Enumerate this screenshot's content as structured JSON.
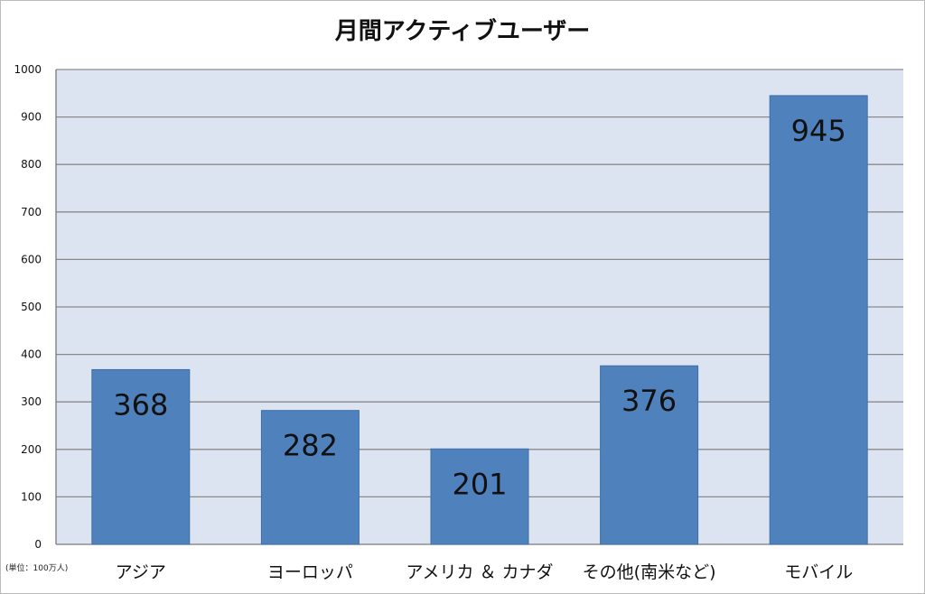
{
  "chart_data": {
    "type": "bar",
    "title": "月間アクティブユーザー",
    "unit_note": "(単位：100万人)",
    "categories": [
      "アジア",
      "ヨーロッパ",
      "アメリカ ＆ カナダ",
      "その他(南米など)",
      "モバイル"
    ],
    "values": [
      368,
      282,
      201,
      376,
      945
    ],
    "ylim": [
      0,
      1000
    ],
    "yticks": [
      0,
      100,
      200,
      300,
      400,
      500,
      600,
      700,
      800,
      900,
      1000
    ],
    "grid": true,
    "legend": "none",
    "colors": {
      "bar": "#4f81bd",
      "bar_edge": "#3f6ea7",
      "plot_background": "#dde4f1",
      "gridline": "#8a8a8a"
    }
  }
}
